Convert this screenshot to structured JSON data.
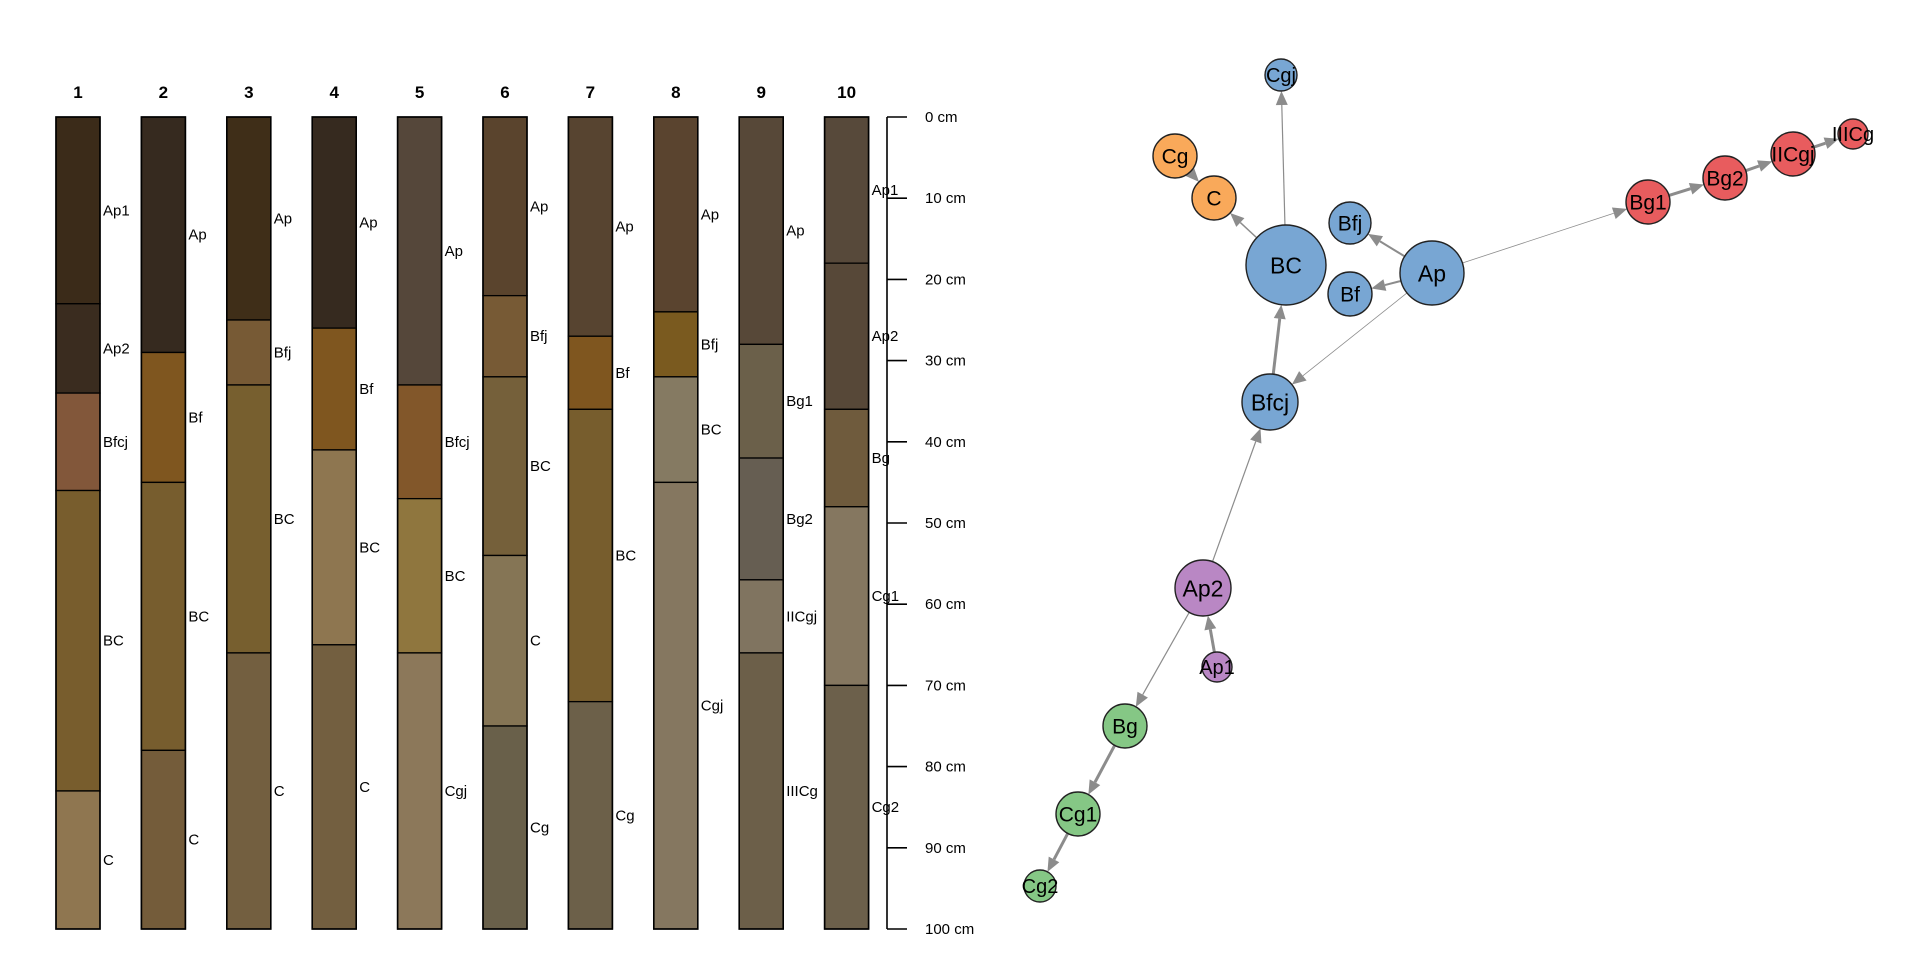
{
  "profiles": [
    {
      "id": "1",
      "horizons": [
        {
          "name": "Ap1",
          "top": 0,
          "bottom": 23,
          "color": "#3b2b19"
        },
        {
          "name": "Ap2",
          "top": 23,
          "bottom": 34,
          "color": "#3a2c1f"
        },
        {
          "name": "Bfcj",
          "top": 34,
          "bottom": 46,
          "color": "#82573a"
        },
        {
          "name": "BC",
          "top": 46,
          "bottom": 83,
          "color": "#785d2d"
        },
        {
          "name": "C",
          "top": 83,
          "bottom": 100,
          "color": "#8f7650"
        }
      ]
    },
    {
      "id": "2",
      "horizons": [
        {
          "name": "Ap",
          "top": 0,
          "bottom": 29,
          "color": "#362a1f"
        },
        {
          "name": "Bf",
          "top": 29,
          "bottom": 45,
          "color": "#7f561f"
        },
        {
          "name": "BC",
          "top": 45,
          "bottom": 78,
          "color": "#775d2e"
        },
        {
          "name": "C",
          "top": 78,
          "bottom": 100,
          "color": "#745c3a"
        }
      ]
    },
    {
      "id": "3",
      "horizons": [
        {
          "name": "Ap",
          "top": 0,
          "bottom": 25,
          "color": "#3f2e18"
        },
        {
          "name": "Bfj",
          "top": 25,
          "bottom": 33,
          "color": "#775a35"
        },
        {
          "name": "BC",
          "top": 33,
          "bottom": 66,
          "color": "#775f2f"
        },
        {
          "name": "C",
          "top": 66,
          "bottom": 100,
          "color": "#735f40"
        }
      ]
    },
    {
      "id": "4",
      "horizons": [
        {
          "name": "Ap",
          "top": 0,
          "bottom": 26,
          "color": "#362a1f"
        },
        {
          "name": "Bf",
          "top": 26,
          "bottom": 41,
          "color": "#7f561f"
        },
        {
          "name": "BC",
          "top": 41,
          "bottom": 65,
          "color": "#8e7650"
        },
        {
          "name": "C",
          "top": 65,
          "bottom": 100,
          "color": "#735f40"
        }
      ]
    },
    {
      "id": "5",
      "horizons": [
        {
          "name": "Ap",
          "top": 0,
          "bottom": 33,
          "color": "#55473a"
        },
        {
          "name": "Bfcj",
          "top": 33,
          "bottom": 47,
          "color": "#82572a"
        },
        {
          "name": "BC",
          "top": 47,
          "bottom": 66,
          "color": "#8f763e"
        },
        {
          "name": "Cgj",
          "top": 66,
          "bottom": 100,
          "color": "#8c785a"
        }
      ]
    },
    {
      "id": "6",
      "horizons": [
        {
          "name": "Ap",
          "top": 0,
          "bottom": 22,
          "color": "#5a442d"
        },
        {
          "name": "Bfj",
          "top": 22,
          "bottom": 32,
          "color": "#775a35"
        },
        {
          "name": "BC",
          "top": 32,
          "bottom": 54,
          "color": "#75603a"
        },
        {
          "name": "C",
          "top": 54,
          "bottom": 75,
          "color": "#857555"
        },
        {
          "name": "Cg",
          "top": 75,
          "bottom": 100,
          "color": "#69604a"
        }
      ]
    },
    {
      "id": "7",
      "horizons": [
        {
          "name": "Ap",
          "top": 0,
          "bottom": 27,
          "color": "#574430"
        },
        {
          "name": "Bf",
          "top": 27,
          "bottom": 36,
          "color": "#7f561f"
        },
        {
          "name": "BC",
          "top": 36,
          "bottom": 72,
          "color": "#775d2d"
        },
        {
          "name": "Cg",
          "top": 72,
          "bottom": 100,
          "color": "#6c6049"
        }
      ]
    },
    {
      "id": "8",
      "horizons": [
        {
          "name": "Ap",
          "top": 0,
          "bottom": 24,
          "color": "#5a442f"
        },
        {
          "name": "Bfj",
          "top": 24,
          "bottom": 32,
          "color": "#7a5a1f"
        },
        {
          "name": "BC",
          "top": 32,
          "bottom": 45,
          "color": "#857a62"
        },
        {
          "name": "Cgj",
          "top": 45,
          "bottom": 100,
          "color": "#857760"
        }
      ]
    },
    {
      "id": "9",
      "horizons": [
        {
          "name": "Ap",
          "top": 0,
          "bottom": 28,
          "color": "#574838"
        },
        {
          "name": "Bg1",
          "top": 28,
          "bottom": 42,
          "color": "#6b604a"
        },
        {
          "name": "Bg2",
          "top": 42,
          "bottom": 57,
          "color": "#665e52"
        },
        {
          "name": "IICgj",
          "top": 57,
          "bottom": 66,
          "color": "#807460"
        },
        {
          "name": "IIICg",
          "top": 66,
          "bottom": 100,
          "color": "#6c5f49"
        }
      ]
    },
    {
      "id": "10",
      "horizons": [
        {
          "name": "Ap1",
          "top": 0,
          "bottom": 18,
          "color": "#57493a"
        },
        {
          "name": "Ap2",
          "top": 18,
          "bottom": 36,
          "color": "#574838"
        },
        {
          "name": "Bg",
          "top": 36,
          "bottom": 48,
          "color": "#6f5b3d"
        },
        {
          "name": "Cg1",
          "top": 48,
          "bottom": 70,
          "color": "#857760"
        },
        {
          "name": "Cg2",
          "top": 70,
          "bottom": 100,
          "color": "#6c604b"
        }
      ]
    }
  ],
  "depth_axis": {
    "ticks": [
      0,
      10,
      20,
      30,
      40,
      50,
      60,
      70,
      80,
      90,
      100
    ],
    "unit": "cm"
  },
  "network": {
    "nodes": [
      {
        "id": "Cgj",
        "cluster": "blue",
        "r": 16
      },
      {
        "id": "Cg",
        "cluster": "orange",
        "r": 22
      },
      {
        "id": "C",
        "cluster": "orange",
        "r": 22
      },
      {
        "id": "BC",
        "cluster": "blue",
        "r": 40
      },
      {
        "id": "Bfj",
        "cluster": "blue",
        "r": 21
      },
      {
        "id": "Bf",
        "cluster": "blue",
        "r": 22
      },
      {
        "id": "Ap",
        "cluster": "blue",
        "r": 32
      },
      {
        "id": "Bfcj",
        "cluster": "blue",
        "r": 28
      },
      {
        "id": "Ap2",
        "cluster": "purple",
        "r": 28
      },
      {
        "id": "Ap1",
        "cluster": "purple",
        "r": 15
      },
      {
        "id": "Bg",
        "cluster": "green",
        "r": 22
      },
      {
        "id": "Cg1",
        "cluster": "green",
        "r": 22
      },
      {
        "id": "Cg2",
        "cluster": "green",
        "r": 16
      },
      {
        "id": "Bg1",
        "cluster": "red",
        "r": 22
      },
      {
        "id": "Bg2",
        "cluster": "red",
        "r": 22
      },
      {
        "id": "IICgj",
        "cluster": "red",
        "r": 22
      },
      {
        "id": "IIICg",
        "cluster": "red",
        "r": 15
      }
    ],
    "edges": [
      {
        "from": "BC",
        "to": "Cgj",
        "w": 1.2
      },
      {
        "from": "Cg",
        "to": "C",
        "w": 3
      },
      {
        "from": "BC",
        "to": "C",
        "w": 1.5
      },
      {
        "from": "Ap",
        "to": "Bfj",
        "w": 2
      },
      {
        "from": "Ap",
        "to": "Bf",
        "w": 2
      },
      {
        "from": "Bfcj",
        "to": "BC",
        "w": 3
      },
      {
        "from": "Ap",
        "to": "Bfcj",
        "w": 0.8
      },
      {
        "from": "Ap",
        "to": "Bg1",
        "w": 0.8
      },
      {
        "from": "Bg1",
        "to": "Bg2",
        "w": 3
      },
      {
        "from": "Bg2",
        "to": "IICgj",
        "w": 3
      },
      {
        "from": "IICgj",
        "to": "IIICg",
        "w": 3
      },
      {
        "from": "Ap2",
        "to": "Bfcj",
        "w": 1.2
      },
      {
        "from": "Ap1",
        "to": "Ap2",
        "w": 3
      },
      {
        "from": "Ap2",
        "to": "Bg",
        "w": 1.2
      },
      {
        "from": "Bg",
        "to": "Cg1",
        "w": 3
      },
      {
        "from": "Cg1",
        "to": "Cg2",
        "w": 3
      }
    ],
    "cluster_colors": {
      "blue": "#78a6d3",
      "orange": "#f9a95a",
      "red": "#e85c5e",
      "purple": "#b987c4",
      "green": "#85c785"
    },
    "edge_color": "#8c8c8c",
    "node_stroke": "#222222"
  }
}
